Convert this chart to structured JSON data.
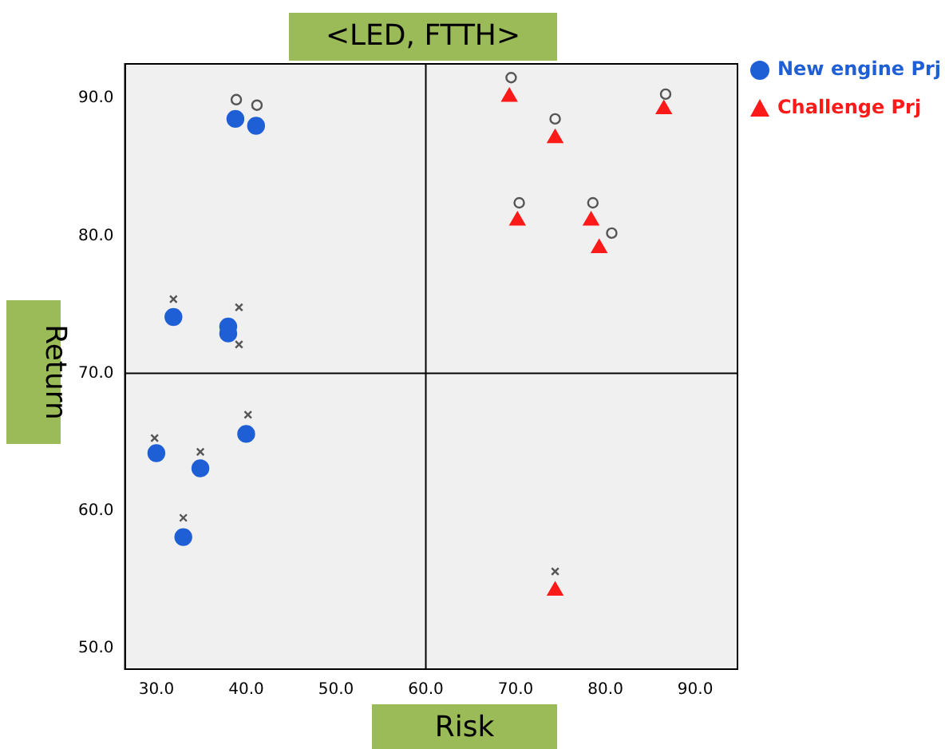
{
  "chart_data": {
    "type": "scatter",
    "title": "<LED, FTTH>",
    "xlabel": "Risk",
    "ylabel": "Return",
    "xlim": [
      26.5,
      94.7
    ],
    "ylim": [
      48.5,
      92.5
    ],
    "xticks": [
      {
        "value": 30,
        "label": "30.0"
      },
      {
        "value": 40,
        "label": "40.0"
      },
      {
        "value": 50,
        "label": "50.0"
      },
      {
        "value": 60,
        "label": "60.0"
      },
      {
        "value": 70,
        "label": "70.0"
      },
      {
        "value": 80,
        "label": "80.0"
      },
      {
        "value": 90,
        "label": "90.0"
      }
    ],
    "yticks": [
      {
        "value": 50,
        "label": "50.0"
      },
      {
        "value": 60,
        "label": "60.0"
      },
      {
        "value": 70,
        "label": "70.0"
      },
      {
        "value": 80,
        "label": "80.0"
      },
      {
        "value": 90,
        "label": "90.0"
      }
    ],
    "grid": false,
    "legend": "top right",
    "ref_lines": [
      {
        "axis": "x",
        "value": 60,
        "color": "#000000"
      },
      {
        "axis": "y",
        "value": 70,
        "color": "#000000"
      }
    ],
    "series": [
      {
        "name": "New engine Prj",
        "color": "#1f5fd6",
        "marker": "circle",
        "x": [
          31.9,
          38,
          38,
          38.8,
          41.1,
          30,
          34.9,
          40,
          33
        ],
        "values": [
          74.1,
          73.4,
          72.9,
          88.5,
          88,
          64.2,
          63.1,
          65.6,
          58.1
        ]
      },
      {
        "name": "Challenge Prj",
        "color": "#ff1a1a",
        "marker": "triangle",
        "x": [
          69.3,
          74.4,
          86.5,
          70.2,
          78.4,
          79.3,
          74.4
        ],
        "values": [
          90.1,
          87.1,
          89.2,
          81.1,
          81.1,
          79.1,
          54.2
        ]
      },
      {
        "color": "#555555",
        "marker": "circle",
        "x": [
          38.9,
          41.2,
          69.5,
          74.4,
          86.7,
          70.4,
          78.6,
          80.7
        ],
        "values": [
          89.9,
          89.5,
          91.5,
          88.5,
          90.3,
          82.4,
          82.4,
          80.2
        ]
      },
      {
        "color": "#555555",
        "marker": "cross",
        "x": [
          31.9,
          39.2,
          39.2,
          29.8,
          34.9,
          40.2,
          33,
          74.4
        ],
        "values": [
          75.4,
          74.8,
          72.1,
          65.3,
          64.3,
          67,
          59.5,
          55.6
        ]
      }
    ]
  }
}
